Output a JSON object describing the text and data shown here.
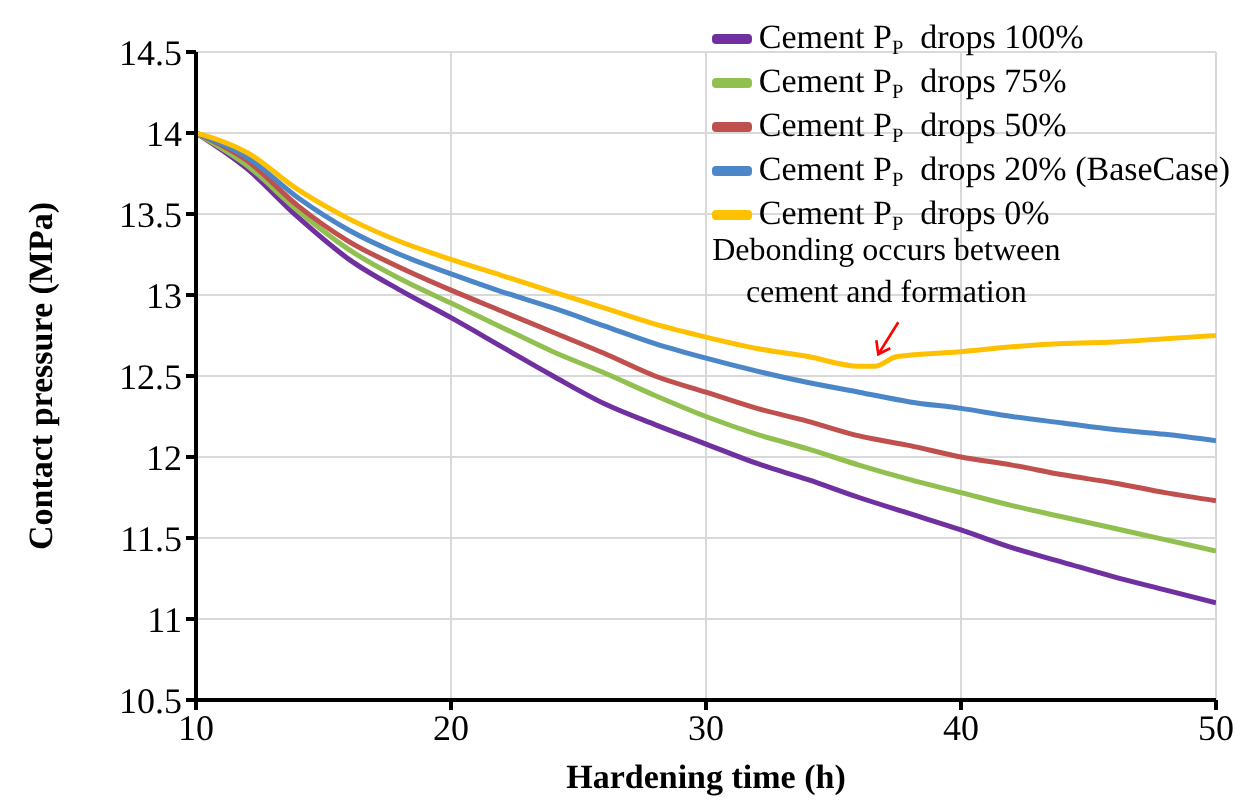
{
  "chart_data": {
    "type": "line",
    "xlabel": "Hardening time (h)",
    "ylabel": "Contact pressure (MPa)",
    "x": [
      10,
      12,
      14,
      16,
      18,
      20,
      22,
      24,
      26,
      28,
      30,
      32,
      34,
      36,
      38,
      40,
      42,
      44,
      46,
      48,
      50
    ],
    "series": [
      {
        "name": "Cement P$_{P}$  drops 100%",
        "color": "#7030a0",
        "values": [
          14,
          13.78,
          13.48,
          13.22,
          13.03,
          12.86,
          12.68,
          12.5,
          12.33,
          12.2,
          12.08,
          11.96,
          11.86,
          11.75,
          11.65,
          11.55,
          11.44,
          11.35,
          11.26,
          11.18,
          11.1
        ]
      },
      {
        "name": "Cement P$_{P}$  drops 75%",
        "color": "#92c050",
        "values": [
          14,
          13.8,
          13.52,
          13.28,
          13.1,
          12.95,
          12.8,
          12.65,
          12.52,
          12.38,
          12.25,
          12.14,
          12.05,
          11.95,
          11.86,
          11.78,
          11.7,
          11.63,
          11.56,
          11.49,
          11.42
        ]
      },
      {
        "name": "Cement P$_{P}$  drops 50%",
        "color": "#c0504d",
        "values": [
          14,
          13.83,
          13.55,
          13.33,
          13.17,
          13.03,
          12.9,
          12.77,
          12.64,
          12.5,
          12.4,
          12.3,
          12.22,
          12.13,
          12.07,
          12,
          11.95,
          11.89,
          11.84,
          11.78,
          11.73
        ]
      },
      {
        "name": "Cement P$_{P}$  drops 20% (BaseCase)",
        "color": "#4a86c8",
        "values": [
          14,
          13.85,
          13.6,
          13.4,
          13.25,
          13.13,
          13.02,
          12.92,
          12.81,
          12.7,
          12.61,
          12.53,
          12.46,
          12.4,
          12.34,
          12.3,
          12.25,
          12.21,
          12.17,
          12.14,
          12.1
        ]
      },
      {
        "name": "Cement P$_{P}$  drops 0%",
        "color": "#ffc000",
        "x": [
          10,
          12,
          14,
          16,
          18,
          20,
          22,
          24,
          26,
          28,
          30,
          32,
          34,
          36,
          36.6,
          37.5,
          40,
          42,
          44,
          46,
          48,
          50
        ],
        "values": [
          14,
          13.88,
          13.65,
          13.47,
          13.33,
          13.22,
          13.12,
          13.02,
          12.92,
          12.82,
          12.74,
          12.67,
          12.62,
          12.56,
          12.56,
          12.62,
          12.65,
          12.68,
          12.7,
          12.71,
          12.73,
          12.75
        ]
      }
    ],
    "xlim": [
      10,
      50
    ],
    "xticks": [
      10,
      20,
      30,
      40,
      50
    ],
    "ylim": [
      10.5,
      14.5
    ],
    "yticks": [
      10.5,
      11,
      11.5,
      12,
      12.5,
      13,
      13.5,
      14,
      14.5
    ],
    "grid": true,
    "legend": "top right",
    "marker": "none",
    "line_style": "solid",
    "annotations": [
      {
        "text": "Debonding occurs between\ncement and formation",
        "x": 36.6,
        "y": 12.56
      }
    ]
  }
}
